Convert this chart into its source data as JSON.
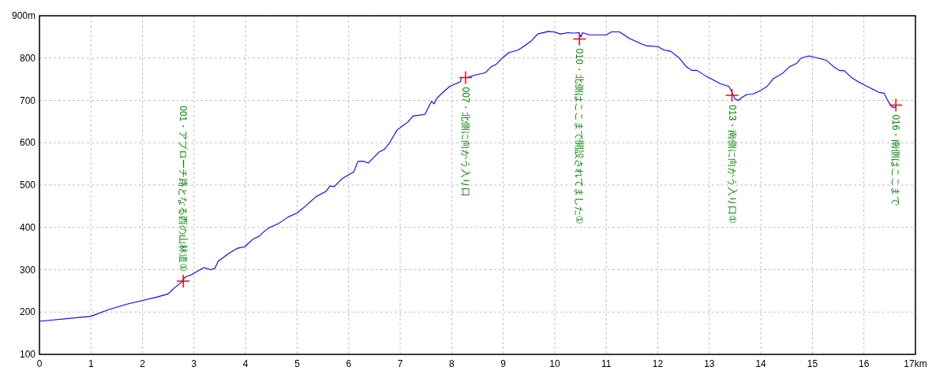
{
  "chart_data": {
    "type": "line",
    "series": [
      {
        "type": "line",
        "color": "#0000ff",
        "marker": "none",
        "x": [
          0,
          1.0,
          1.33,
          1.68,
          1.99,
          2.3,
          2.5,
          2.6,
          2.76,
          2.83,
          2.96,
          3.19,
          3.32,
          3.4,
          3.47,
          3.68,
          3.85,
          3.98,
          4.14,
          4.26,
          4.34,
          4.44,
          4.65,
          4.82,
          5.0,
          5.16,
          5.36,
          5.56,
          5.64,
          5.72,
          5.87,
          6.1,
          6.18,
          6.3,
          6.38,
          6.59,
          6.69,
          6.79,
          6.94,
          7.05,
          7.15,
          7.25,
          7.48,
          7.61,
          7.66,
          7.71,
          7.84,
          7.96,
          8.17,
          8.19,
          8.3,
          8.45,
          8.65,
          8.76,
          8.86,
          8.99,
          9.11,
          9.29,
          9.39,
          9.55,
          9.67,
          9.88,
          9.98,
          10.11,
          10.26,
          10.36,
          10.47,
          10.51,
          10.54,
          10.67,
          11.0,
          11.1,
          11.26,
          11.44,
          11.69,
          11.79,
          12.0,
          12.12,
          12.25,
          12.41,
          12.56,
          12.66,
          12.76,
          12.94,
          13.22,
          13.38,
          13.45,
          13.5,
          13.57,
          13.63,
          13.73,
          13.84,
          13.99,
          14.12,
          14.24,
          14.42,
          14.55,
          14.7,
          14.78,
          14.93,
          15.11,
          15.27,
          15.42,
          15.52,
          15.62,
          15.78,
          15.95,
          16.18,
          16.29,
          16.39,
          16.47,
          16.55,
          16.62
        ],
        "values": [
          178,
          190,
          205,
          218,
          227,
          236,
          243,
          255,
          271,
          283,
          289,
          305,
          300,
          303,
          320,
          339,
          351,
          354,
          372,
          379,
          388,
          398,
          410,
          424,
          434,
          450,
          472,
          485,
          498,
          496,
          515,
          531,
          556,
          556,
          552,
          578,
          584,
          599,
          630,
          640,
          649,
          663,
          667,
          698,
          692,
          705,
          720,
          733,
          744,
          754,
          754,
          760,
          765,
          779,
          785,
          801,
          813,
          819,
          827,
          841,
          857,
          863,
          862,
          857,
          860,
          859,
          860,
          850,
          860,
          855,
          855,
          862,
          862,
          847,
          833,
          829,
          827,
          819,
          816,
          801,
          779,
          771,
          771,
          757,
          739,
          733,
          717,
          703,
          700,
          707,
          714,
          715,
          723,
          733,
          751,
          764,
          779,
          788,
          800,
          805,
          800,
          795,
          779,
          771,
          770,
          752,
          740,
          726,
          719,
          717,
          698,
          684,
          684
        ]
      },
      {
        "type": "scatter",
        "color": "#ff0000",
        "marker": "cross",
        "x": [
          2.79,
          8.27,
          10.48,
          13.44,
          16.62
        ],
        "values": [
          273,
          754,
          845,
          712,
          689
        ]
      }
    ],
    "xlim": [
      0,
      17
    ],
    "ylim": [
      100,
      900
    ],
    "xticks": [
      0,
      1,
      2,
      3,
      4,
      5,
      6,
      7,
      8,
      9,
      10,
      11,
      12,
      13,
      14,
      15,
      16,
      {
        "value": 17,
        "label": "17km"
      }
    ],
    "yticks": [
      100,
      200,
      300,
      400,
      500,
      600,
      700,
      800,
      {
        "value": 900,
        "label": "900m"
      }
    ],
    "grid": true,
    "annotations": [
      {
        "text": "001・アプローチ路となる西の山林道①",
        "x": 2.79,
        "y": 273
      },
      {
        "text": "007・北側に向かう入り口",
        "x": 8.27,
        "y": 754
      },
      {
        "text": "010・北側はここまで開設されてました①",
        "x": 10.48,
        "y": 845
      },
      {
        "text": "013・南側に向かう入り口①",
        "x": 13.44,
        "y": 712
      },
      {
        "text": "016・南側はここまで",
        "x": 16.62,
        "y": 689
      }
    ]
  }
}
